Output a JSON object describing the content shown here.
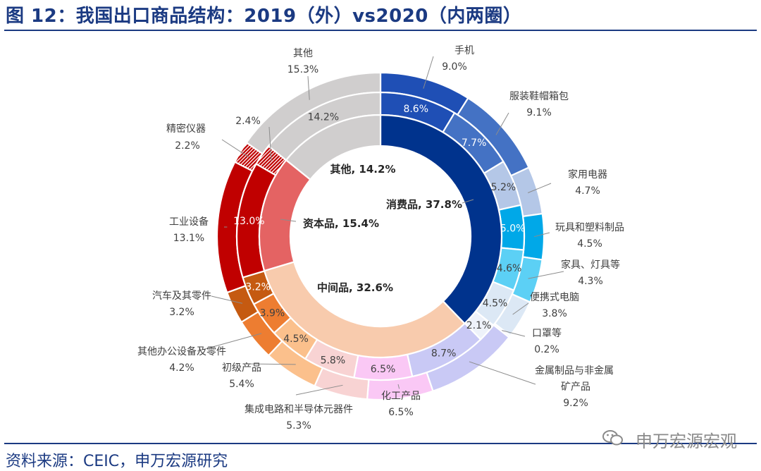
{
  "header": {
    "title": "图 12：我国出口商品结构：2019（外）vs2020（内两圈）"
  },
  "footer": {
    "source": "资料来源：CEIC，申万宏源研究",
    "watermark": "申万宏源宏观"
  },
  "chart_data": {
    "type": "donut",
    "rings_note": "外圈=2019, 中圈=2020, 内圈=2020大类",
    "outer_2019": [
      {
        "name": "手机",
        "value": 9.0,
        "label": "9.0%",
        "color": "#1f4fb5"
      },
      {
        "name": "服装鞋帽箱包",
        "value": 9.1,
        "label": "9.1%",
        "color": "#4472c4"
      },
      {
        "name": "家用电器",
        "value": 4.7,
        "label": "4.7%",
        "color": "#b4c7e7"
      },
      {
        "name": "玩具和塑料制品",
        "value": 4.5,
        "label": "4.5%",
        "color": "#00a8e8"
      },
      {
        "name": "家具、灯具等",
        "value": 4.3,
        "label": "4.3%",
        "color": "#5cd0f5"
      },
      {
        "name": "便携式电脑",
        "value": 3.8,
        "label": "3.8%",
        "color": "#dce8f5"
      },
      {
        "name": "口罩等",
        "value": 0.2,
        "label": "0.2%",
        "color": "#eef2fa"
      },
      {
        "name": "金属制品与非金属矿产品",
        "value": 9.2,
        "label": "9.2%",
        "color": "#c9c9f5"
      },
      {
        "name": "化工产品",
        "value": 6.5,
        "label": "6.5%",
        "color": "#fac8f5"
      },
      {
        "name": "集成电路和半导体元器件",
        "value": 5.3,
        "label": "5.3%",
        "color": "#f8d3d3"
      },
      {
        "name": "初级产品",
        "value": 5.4,
        "label": "5.4%",
        "color": "#fbc08c"
      },
      {
        "name": "其他办公设备及零件",
        "value": 4.2,
        "label": "4.2%",
        "color": "#ed7d31"
      },
      {
        "name": "汽车及其零件",
        "value": 3.2,
        "label": "3.2%",
        "color": "#c55a11"
      },
      {
        "name": "工业设备",
        "value": 13.1,
        "label": "13.1%",
        "color": "#c00000"
      },
      {
        "name": "精密仪器",
        "value": 2.2,
        "label": "2.2%",
        "color": "#c00000",
        "hatch": true
      },
      {
        "name": "其他",
        "value": 15.3,
        "label": "15.3%",
        "color": "#d0cece"
      }
    ],
    "middle_2020": [
      {
        "name": "手机",
        "value": 8.6,
        "label": "8.6%",
        "color": "#1f4fb5"
      },
      {
        "name": "服装鞋帽箱包",
        "value": 7.7,
        "label": "7.7%",
        "color": "#4472c4"
      },
      {
        "name": "家用电器",
        "value": 5.2,
        "label": "5.2%",
        "color": "#b4c7e7"
      },
      {
        "name": "玩具和塑料制品",
        "value": 5.0,
        "label": "5.0%",
        "color": "#00a8e8"
      },
      {
        "name": "家具、灯具等",
        "value": 4.6,
        "label": "4.6%",
        "color": "#5cd0f5"
      },
      {
        "name": "便携式电脑",
        "value": 4.5,
        "label": "4.5%",
        "color": "#dce8f5"
      },
      {
        "name": "口罩等",
        "value": 2.1,
        "label": "2.1%",
        "color": "#eef2fa"
      },
      {
        "name": "金属制品与非金属矿产品",
        "value": 8.7,
        "label": "8.7%",
        "color": "#c9c9f5"
      },
      {
        "name": "化工产品",
        "value": 6.5,
        "label": "6.5%",
        "color": "#fac8f5"
      },
      {
        "name": "集成电路和半导体元器件",
        "value": 5.8,
        "label": "5.8%",
        "color": "#f8d3d3"
      },
      {
        "name": "初级产品",
        "value": 4.5,
        "label": "4.5%",
        "color": "#fbc08c"
      },
      {
        "name": "其他办公设备及零件",
        "value": 3.9,
        "label": "3.9%",
        "color": "#ed7d31"
      },
      {
        "name": "汽车及其零件",
        "value": 3.2,
        "label": "3.2%",
        "color": "#c55a11"
      },
      {
        "name": "工业设备",
        "value": 13.0,
        "label": "13.0%",
        "color": "#c00000"
      },
      {
        "name": "精密仪器",
        "value": 2.4,
        "label": "2.4%",
        "color": "#c00000",
        "hatch": true
      },
      {
        "name": "其他",
        "value": 14.2,
        "label": "14.2%",
        "color": "#d0cece"
      }
    ],
    "inner_2020": [
      {
        "name": "消费品",
        "value": 37.8,
        "label": "消费品, 37.8%",
        "color": "#00338d"
      },
      {
        "name": "中间品",
        "value": 32.6,
        "label": "中间品, 32.6%",
        "color": "#f8cbad"
      },
      {
        "name": "资本品",
        "value": 15.4,
        "label": "资本品, 15.4%",
        "color": "#e46363"
      },
      {
        "name": "其他",
        "value": 14.2,
        "label": "其他, 14.2%",
        "color": "#d0cece"
      }
    ]
  }
}
